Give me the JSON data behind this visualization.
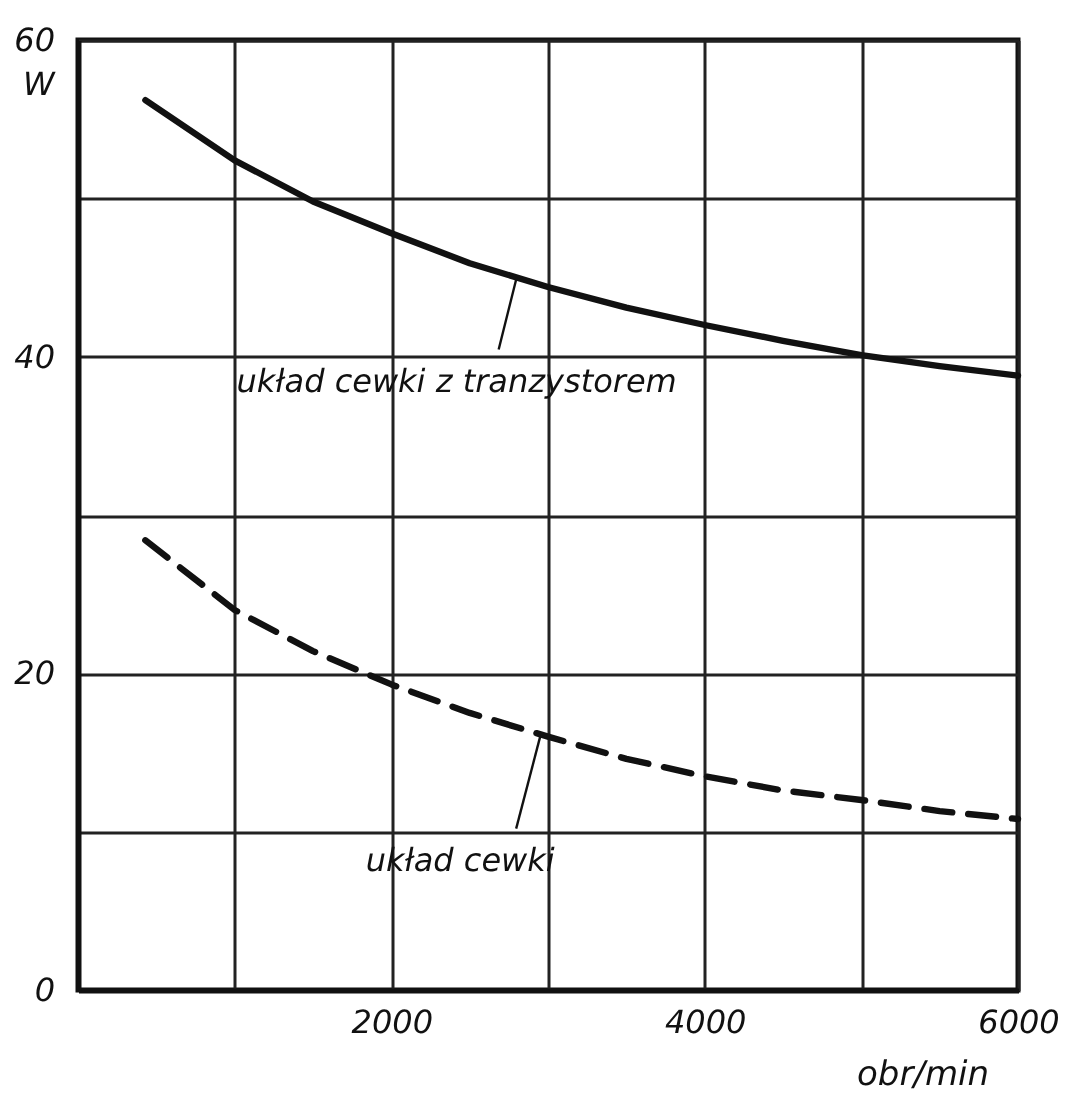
{
  "chart_data": {
    "type": "line",
    "xlabel": "obr/min",
    "ylabel": "W",
    "xlim": [
      0,
      6000
    ],
    "ylim": [
      0,
      60
    ],
    "xticks": [
      {
        "value": 0,
        "label": null
      },
      {
        "value": 1000,
        "label": null
      },
      2000,
      {
        "value": 3000,
        "label": null
      },
      4000,
      {
        "value": 5000,
        "label": null
      },
      6000
    ],
    "yticks": [
      0,
      {
        "value": 10,
        "label": null
      },
      20,
      {
        "value": 30,
        "label": null
      },
      40,
      {
        "value": 50,
        "label": null
      },
      60
    ],
    "grid": true,
    "marker": "none",
    "series": [
      {
        "color": "#111111",
        "line_style": "solid",
        "x": [
          430,
          1000,
          1500,
          2000,
          2500,
          3000,
          3500,
          4000,
          4500,
          5000,
          5500,
          6000
        ],
        "values": [
          56.2,
          52.4,
          49.8,
          47.8,
          45.9,
          44.4,
          43.1,
          42.0,
          41.0,
          40.1,
          39.4,
          38.8
        ]
      },
      {
        "color": "#111111",
        "line_style": "dashed",
        "x": [
          430,
          1000,
          1500,
          2000,
          2500,
          3000,
          3500,
          4000,
          4500,
          5000,
          5500,
          6000
        ],
        "values": [
          28.4,
          24.0,
          21.4,
          19.3,
          17.5,
          16.0,
          14.6,
          13.5,
          12.6,
          12.0,
          11.3,
          10.8
        ]
      }
    ],
    "annotations": [
      {
        "text": "układ cewki z tranzystorem",
        "x": 2800,
        "y": 45
      },
      {
        "text": "układ cewki",
        "x": 2950,
        "y": 16
      }
    ]
  }
}
